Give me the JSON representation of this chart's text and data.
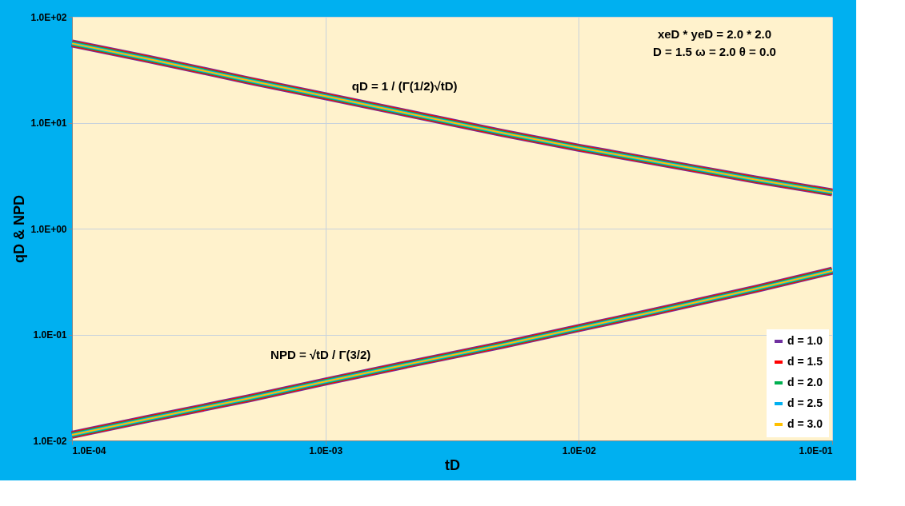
{
  "chart_data": {
    "type": "line",
    "xlabel": "tD",
    "ylabel": "qD & NPD",
    "log": "xy",
    "x": [
      0.0001,
      0.0002,
      0.0005,
      0.001,
      0.002,
      0.005,
      0.01,
      0.02,
      0.05,
      0.1
    ],
    "series": [
      {
        "name": "d = 1.0",
        "color": "#7030a0",
        "values": [
          56,
          40,
          25,
          17.8,
          12.6,
          8.0,
          5.8,
          4.3,
          2.9,
          2.2
        ]
      },
      {
        "name": "d = 1.5",
        "color": "#ff0000",
        "values": [
          56,
          40,
          25,
          17.8,
          12.6,
          8.0,
          5.8,
          4.3,
          2.9,
          2.2
        ]
      },
      {
        "name": "d = 2.0",
        "color": "#00b050",
        "values": [
          56,
          40,
          25,
          17.8,
          12.6,
          8.0,
          5.8,
          4.3,
          2.9,
          2.2
        ]
      },
      {
        "name": "d = 2.5",
        "color": "#00b0f0",
        "values": [
          56,
          40,
          25,
          17.8,
          12.6,
          8.0,
          5.8,
          4.3,
          2.9,
          2.2
        ]
      },
      {
        "name": "d = 3.0",
        "color": "#ffc000",
        "values": [
          56,
          40,
          25,
          17.8,
          12.6,
          8.0,
          5.8,
          4.3,
          2.9,
          2.2
        ]
      },
      {
        "color": "#7030a0",
        "values": [
          0.0113,
          0.016,
          0.025,
          0.036,
          0.051,
          0.08,
          0.115,
          0.165,
          0.27,
          0.4
        ]
      },
      {
        "color": "#ff0000",
        "values": [
          0.0113,
          0.016,
          0.025,
          0.036,
          0.051,
          0.08,
          0.115,
          0.165,
          0.27,
          0.4
        ]
      },
      {
        "color": "#00b050",
        "values": [
          0.0113,
          0.016,
          0.025,
          0.036,
          0.051,
          0.08,
          0.115,
          0.165,
          0.27,
          0.4
        ]
      },
      {
        "color": "#00b0f0",
        "values": [
          0.0113,
          0.016,
          0.025,
          0.036,
          0.051,
          0.08,
          0.115,
          0.165,
          0.27,
          0.4
        ]
      },
      {
        "color": "#ffc000",
        "values": [
          0.0113,
          0.016,
          0.025,
          0.036,
          0.051,
          0.08,
          0.115,
          0.165,
          0.27,
          0.4
        ]
      }
    ],
    "xlim": [
      0.0001,
      0.1
    ],
    "xticks": [
      {
        "value": 0.0001,
        "label": "1.0E-04"
      },
      {
        "value": 0.001,
        "label": "1.0E-03"
      },
      {
        "value": 0.01,
        "label": "1.0E-02"
      },
      {
        "value": 0.1,
        "label": "1.0E-01"
      }
    ],
    "ylim": [
      0.01,
      100
    ],
    "yticks": [
      {
        "value": 0.01,
        "label": "1.0E-02"
      },
      {
        "value": 0.1,
        "label": "1.0E-01"
      },
      {
        "value": 1,
        "label": "1.0E+00"
      },
      {
        "value": 10,
        "label": "1.0E+01"
      },
      {
        "value": 100,
        "label": "1.0E+02"
      }
    ],
    "grid": true,
    "legend": "bottom right",
    "line_style": "solid",
    "marker": "none",
    "annotations": [
      {
        "text": "qD = 1 / (Γ(1/2)√tD)",
        "x": 0.0012,
        "y": 15.5
      },
      {
        "text": "NPD = √tD / Γ(3/2)",
        "x": 0.0016,
        "y": 0.045
      },
      "xeD * yeD = 2.0 * 2.0",
      "D = 1.5     ω = 2.0     θ = 0.0"
    ]
  }
}
